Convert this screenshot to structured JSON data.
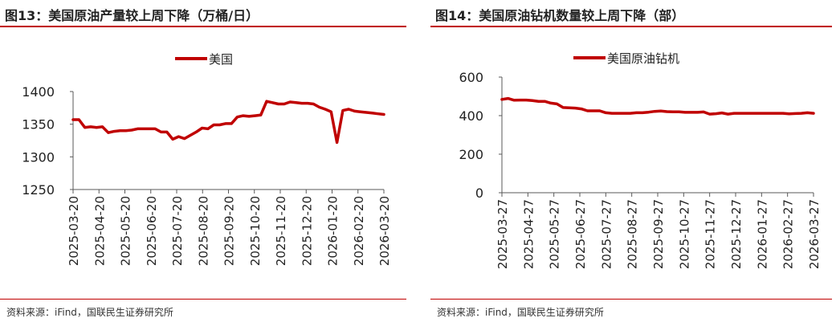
{
  "colors": {
    "accent": "#c00000",
    "axis": "#595959",
    "text": "#222222"
  },
  "charts": [
    {
      "title": "图13：美国原油产量较上周下降（万桶/日）",
      "source": "资料来源：iFind，国联民生证券研究所",
      "chart_data": {
        "type": "line",
        "ylim": [
          1250,
          1400
        ],
        "yticks": [
          "1250",
          "1300",
          "1350",
          "1400"
        ],
        "grid": false,
        "legend_position": "top-center",
        "x_tick_labels": [
          "2025-03-20",
          "2025-04-20",
          "2025-05-20",
          "2025-06-20",
          "2025-07-20",
          "2025-08-20",
          "2025-09-20",
          "2025-10-20",
          "2025-11-20",
          "2025-12-20",
          "2026-01-20",
          "2026-02-20",
          "2026-03-20"
        ],
        "series": [
          {
            "name": "美国",
            "color": "#c00000",
            "values": [
              1357,
              1357,
              1345,
              1346,
              1345,
              1346,
              1337,
              1339,
              1340,
              1340,
              1341,
              1343,
              1343,
              1343,
              1343,
              1338,
              1338,
              1327,
              1331,
              1328,
              1333,
              1338,
              1344,
              1343,
              1349,
              1349,
              1351,
              1351,
              1361,
              1363,
              1362,
              1363,
              1364,
              1385,
              1383,
              1381,
              1381,
              1384,
              1383,
              1382,
              1382,
              1381,
              1376,
              1373,
              1369,
              1322,
              1371,
              1373,
              1370,
              1369,
              1368,
              1367,
              1366,
              1365
            ]
          }
        ]
      }
    },
    {
      "title": "图14：美国原油钻机数量较上周下降（部）",
      "source": "资料来源：iFind，国联民生证券研究所",
      "chart_data": {
        "type": "line",
        "ylim": [
          0,
          600
        ],
        "yticks": [
          "0",
          "200",
          "400",
          "600"
        ],
        "grid": false,
        "legend_position": "top-center",
        "x_tick_labels": [
          "2025-03-27",
          "2025-04-27",
          "2025-05-27",
          "2025-06-27",
          "2025-07-27",
          "2025-08-27",
          "2025-09-27",
          "2025-10-27",
          "2025-11-27",
          "2025-12-27",
          "2026-01-27",
          "2026-02-27",
          "2026-03-27"
        ],
        "series": [
          {
            "name": "美国原油钻机",
            "color": "#c00000",
            "values": [
              484,
              489,
              480,
              481,
              481,
              478,
              474,
              474,
              465,
              461,
              442,
              441,
              439,
              435,
              425,
              425,
              425,
              415,
              412,
              412,
              412,
              412,
              415,
              415,
              418,
              422,
              424,
              421,
              420,
              420,
              417,
              417,
              417,
              419,
              408,
              410,
              414,
              408,
              412,
              412,
              412,
              412,
              412,
              412,
              412,
              412,
              412,
              409,
              411,
              412,
              415,
              412
            ]
          }
        ]
      }
    }
  ]
}
